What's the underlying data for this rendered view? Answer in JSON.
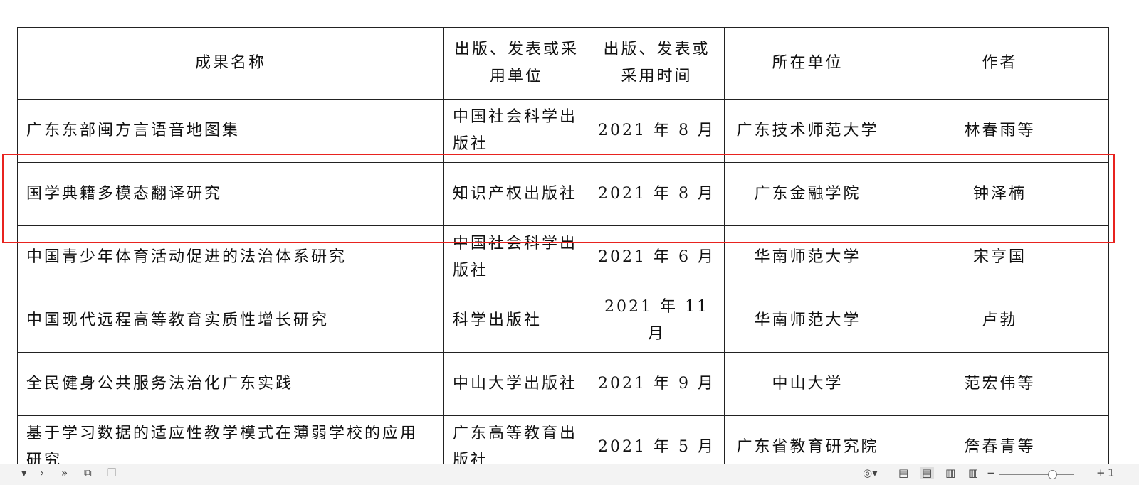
{
  "table": {
    "headers": [
      "成果名称",
      "出版、发表或采用单位",
      "出版、发表或采用时间",
      "所在单位",
      "作者"
    ],
    "rows": [
      [
        "广东东部闽方言语音地图集",
        "中国社会科学出版社",
        "2021 年 8 月",
        "广东技术师范大学",
        "林春雨等"
      ],
      [
        "国学典籍多模态翻译研究",
        "知识产权出版社",
        "2021 年 8 月",
        "广东金融学院",
        "钟泽楠"
      ],
      [
        "中国青少年体育活动促进的法治体系研究",
        "中国社会科学出版社",
        "2021 年 6 月",
        "华南师范大学",
        "宋亨国"
      ],
      [
        "中国现代远程高等教育实质性增长研究",
        "科学出版社",
        "2021 年 11 月",
        "华南师范大学",
        "卢勃"
      ],
      [
        "全民健身公共服务法治化广东实践",
        "中山大学出版社",
        "2021 年 9 月",
        "中山大学",
        "范宏伟等"
      ],
      [
        "基于学习数据的适应性教学模式在薄弱学校的应用研究",
        "广东高等教育出版社",
        "2021 年 5 月",
        "广东省教育研究院",
        "詹春青等"
      ]
    ]
  },
  "highlight_color": "#e8231f",
  "status": {
    "zoom_minus": "−",
    "zoom_plus": "+",
    "zoom_value": "1"
  }
}
